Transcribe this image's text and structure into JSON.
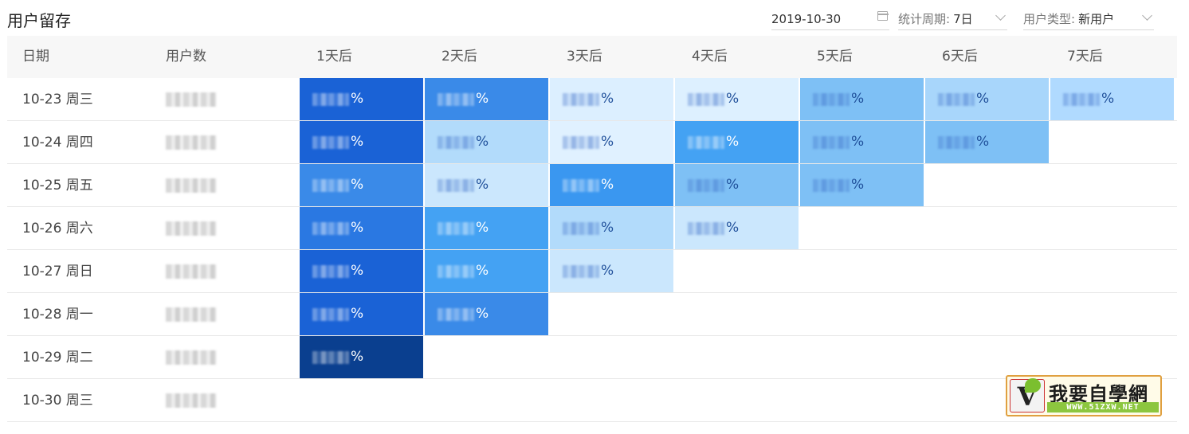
{
  "header": {
    "title": "用户留存",
    "date": "2019-10-30",
    "period_label": "统计周期:",
    "period_value": "7日",
    "user_type_label": "用户类型:",
    "user_type_value": "新用户"
  },
  "table": {
    "columns": [
      "日期",
      "用户数",
      "1天后",
      "2天后",
      "3天后",
      "4天后",
      "5天后",
      "6天后",
      "7天后"
    ],
    "percent_suffix": "%",
    "rows": [
      {
        "date": "10-23 周三",
        "cells": [
          "#1a62d6",
          "#3a8ae8",
          "#dcefff",
          "#ddf0ff",
          "#7ec0f5",
          "#a8d6fb",
          "#b0daff"
        ]
      },
      {
        "date": "10-24 周四",
        "cells": [
          "#1a62d6",
          "#b2dbfb",
          "#e0f1ff",
          "#44a2f3",
          "#7ec0f5",
          "#7ec0f5"
        ]
      },
      {
        "date": "10-25 周五",
        "cells": [
          "#3a8ae8",
          "#cbe7fd",
          "#3a97f0",
          "#7ec0f5",
          "#7ec0f5"
        ]
      },
      {
        "date": "10-26 周六",
        "cells": [
          "#2a78e2",
          "#44a2f3",
          "#b2dbfb",
          "#cbe7fd"
        ]
      },
      {
        "date": "10-27 周日",
        "cells": [
          "#1a62d6",
          "#44a2f3",
          "#cbe7fd"
        ]
      },
      {
        "date": "10-28 周一",
        "cells": [
          "#1a62d6",
          "#3a8ae8"
        ]
      },
      {
        "date": "10-29 周二",
        "cells": [
          "#0a3f8f"
        ]
      },
      {
        "date": "10-30 周三",
        "cells": []
      }
    ]
  },
  "watermark": {
    "logo": "V",
    "name": "我要自學網",
    "url": "WWW.51ZXW.NET"
  }
}
